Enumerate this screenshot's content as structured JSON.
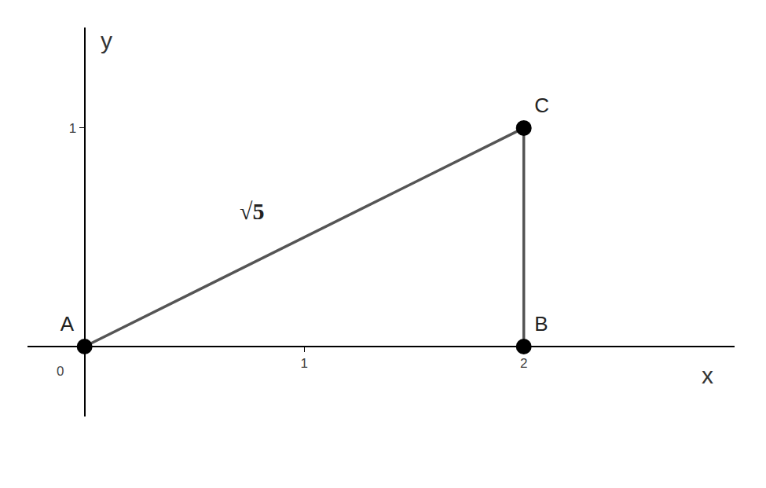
{
  "chart_data": {
    "type": "scatter",
    "x": [
      0,
      2,
      2
    ],
    "values": [
      0,
      1,
      0
    ],
    "point_labels": [
      "A",
      "C",
      "B"
    ],
    "xlim": [
      -0.26,
      2.96
    ],
    "ylim": [
      -0.32,
      1.46
    ],
    "xticks": [
      1,
      2
    ],
    "yticks": [
      1
    ],
    "x_label": "x",
    "y_label": "y",
    "grid": false,
    "color": "#555555",
    "marker": "circle",
    "annotations": [
      {
        "text": "√5",
        "x": 0.76,
        "y": 0.62
      },
      {
        "text": "0",
        "x": 0,
        "y": 0
      }
    ]
  }
}
